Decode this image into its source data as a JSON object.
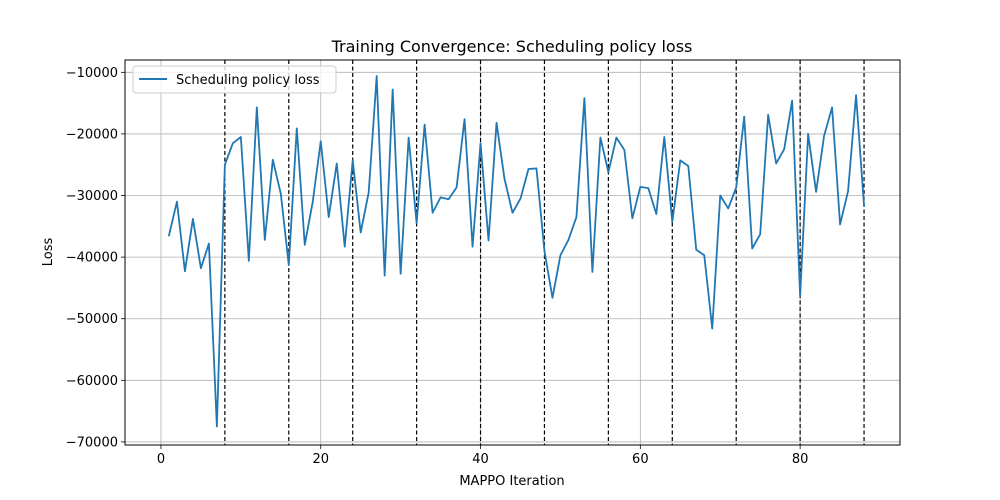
{
  "chart_data": {
    "type": "line",
    "title": "Training Convergence: Scheduling policy loss",
    "xlabel": "MAPPO Iteration",
    "ylabel": "Loss",
    "xlim": [
      -4.5,
      92.5
    ],
    "ylim": [
      -70500,
      -8000
    ],
    "xticks": [
      0,
      20,
      40,
      60,
      80
    ],
    "yticks": [
      -70000,
      -60000,
      -50000,
      -40000,
      -30000,
      -20000,
      -10000
    ],
    "grid": true,
    "legend_position": "upper-left",
    "vlines": [
      8,
      16,
      24,
      32,
      40,
      48,
      56,
      64,
      72,
      80,
      88
    ],
    "series": [
      {
        "name": "Scheduling policy loss",
        "color": "#1f77b4",
        "x": [
          1,
          2,
          3,
          4,
          5,
          6,
          7,
          8,
          9,
          10,
          11,
          12,
          13,
          14,
          15,
          16,
          17,
          18,
          19,
          20,
          21,
          22,
          23,
          24,
          25,
          26,
          27,
          28,
          29,
          30,
          31,
          32,
          33,
          34,
          35,
          36,
          37,
          38,
          39,
          40,
          41,
          42,
          43,
          44,
          45,
          46,
          47,
          48,
          49,
          50,
          51,
          52,
          53,
          54,
          55,
          56,
          57,
          58,
          59,
          60,
          61,
          62,
          63,
          64,
          65,
          66,
          67,
          68,
          69,
          70,
          71,
          72,
          73,
          74,
          75,
          76,
          77,
          78,
          79,
          80,
          81,
          82,
          83,
          84,
          85,
          86,
          87,
          88
        ],
        "y": [
          -36500,
          -31000,
          -42300,
          -33800,
          -41800,
          -37800,
          -67500,
          -25000,
          -21500,
          -20500,
          -40600,
          -15700,
          -37200,
          -24200,
          -29700,
          -41300,
          -19100,
          -38000,
          -31000,
          -21200,
          -33500,
          -24800,
          -38300,
          -24300,
          -36000,
          -29500,
          -10600,
          -43000,
          -12800,
          -42700,
          -20600,
          -34500,
          -18500,
          -32800,
          -30300,
          -30600,
          -28700,
          -17600,
          -38300,
          -21500,
          -37300,
          -18200,
          -27300,
          -32800,
          -30500,
          -25700,
          -25600,
          -39000,
          -46600,
          -39700,
          -37200,
          -33500,
          -14200,
          -42400,
          -20600,
          -26200,
          -20600,
          -22600,
          -33700,
          -28600,
          -28800,
          -33000,
          -20500,
          -34300,
          -24300,
          -25200,
          -38800,
          -39700,
          -51600,
          -30000,
          -32100,
          -28700,
          -17200,
          -38600,
          -36300,
          -16900,
          -24800,
          -22500,
          -14600,
          -46300,
          -20000,
          -29400,
          -20300,
          -15700,
          -34700,
          -29300,
          -13700,
          -31700
        ]
      }
    ]
  }
}
